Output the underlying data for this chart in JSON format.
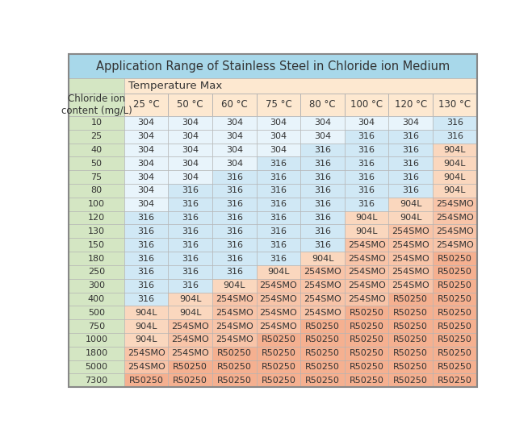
{
  "title": "Application Range of Stainless Steel in Chloride ion Medium",
  "subtitle": "Temperature Max",
  "col_header_label": "Chloride ion\ncontent (mg/L)",
  "temperatures": [
    "25 °C",
    "50 °C",
    "60 °C",
    "75 °C",
    "80 °C",
    "100 °C",
    "120 °C",
    "130 °C"
  ],
  "rows": [
    [
      "10",
      "304",
      "304",
      "304",
      "304",
      "304",
      "304",
      "304",
      "316"
    ],
    [
      "25",
      "304",
      "304",
      "304",
      "304",
      "304",
      "316",
      "316",
      "316"
    ],
    [
      "40",
      "304",
      "304",
      "304",
      "304",
      "316",
      "316",
      "316",
      "904L"
    ],
    [
      "50",
      "304",
      "304",
      "304",
      "316",
      "316",
      "316",
      "316",
      "904L"
    ],
    [
      "75",
      "304",
      "304",
      "316",
      "316",
      "316",
      "316",
      "316",
      "904L"
    ],
    [
      "80",
      "304",
      "316",
      "316",
      "316",
      "316",
      "316",
      "316",
      "904L"
    ],
    [
      "100",
      "304",
      "316",
      "316",
      "316",
      "316",
      "316",
      "904L",
      "254SMO"
    ],
    [
      "120",
      "316",
      "316",
      "316",
      "316",
      "316",
      "904L",
      "904L",
      "254SMO"
    ],
    [
      "130",
      "316",
      "316",
      "316",
      "316",
      "316",
      "904L",
      "254SMO",
      "254SMO"
    ],
    [
      "150",
      "316",
      "316",
      "316",
      "316",
      "316",
      "254SMO",
      "254SMO",
      "254SMO"
    ],
    [
      "180",
      "316",
      "316",
      "316",
      "316",
      "904L",
      "254SMO",
      "254SMO",
      "R50250"
    ],
    [
      "250",
      "316",
      "316",
      "316",
      "904L",
      "254SMO",
      "254SMO",
      "254SMO",
      "R50250"
    ],
    [
      "300",
      "316",
      "316",
      "904L",
      "254SMO",
      "254SMO",
      "254SMO",
      "254SMO",
      "R50250"
    ],
    [
      "400",
      "316",
      "904L",
      "254SMO",
      "254SMO",
      "254SMO",
      "254SMO",
      "R50250",
      "R50250"
    ],
    [
      "500",
      "904L",
      "904L",
      "254SMO",
      "254SMO",
      "254SMO",
      "R50250",
      "R50250",
      "R50250"
    ],
    [
      "750",
      "904L",
      "254SMO",
      "254SMO",
      "254SMO",
      "R50250",
      "R50250",
      "R50250",
      "R50250"
    ],
    [
      "1000",
      "904L",
      "254SMO",
      "254SMO",
      "R50250",
      "R50250",
      "R50250",
      "R50250",
      "R50250"
    ],
    [
      "1800",
      "254SMO",
      "254SMO",
      "R50250",
      "R50250",
      "R50250",
      "R50250",
      "R50250",
      "R50250"
    ],
    [
      "5000",
      "254SMO",
      "R50250",
      "R50250",
      "R50250",
      "R50250",
      "R50250",
      "R50250",
      "R50250"
    ],
    [
      "7300",
      "R50250",
      "R50250",
      "R50250",
      "R50250",
      "R50250",
      "R50250",
      "R50250",
      "R50250"
    ]
  ],
  "color_map": {
    "304": "#e8f4fb",
    "316": "#d0e8f5",
    "904L": "#fad7be",
    "254SMO": "#f8c4a8",
    "R50250": "#f5b090"
  },
  "title_bg": "#a8d8ea",
  "subtitle_bg": "#fde8d0",
  "header_left_bg": "#d4e6c3",
  "header_temp_bg": "#fde8d0",
  "row_label_bg": "#d4e6c3",
  "border_color": "#b0b0b0",
  "text_color": "#333333",
  "title_fontsize": 10.5,
  "subtitle_fontsize": 9.5,
  "cell_fontsize": 8.0,
  "header_fontsize": 8.5
}
